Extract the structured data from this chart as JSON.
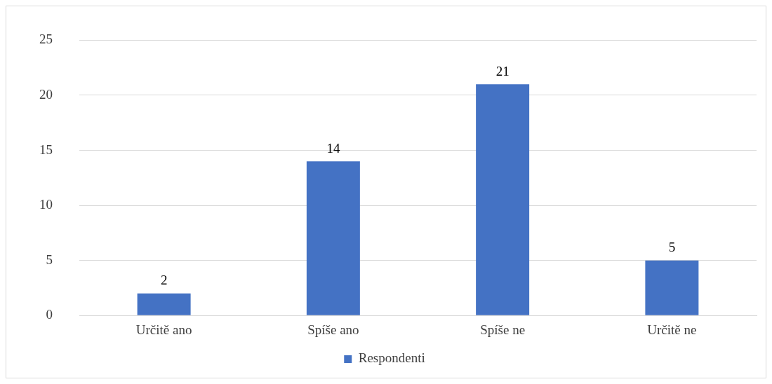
{
  "chart_data": {
    "type": "bar",
    "categories": [
      "Určitě ano",
      "Spíše ano",
      "Spíše ne",
      "Určitě ne"
    ],
    "series": [
      {
        "name": "Respondenti",
        "color": "#4472c4",
        "values": [
          2,
          14,
          21,
          5
        ]
      }
    ],
    "ylim": [
      0,
      25
    ],
    "yticks": [
      0,
      5,
      10,
      15,
      20,
      25
    ],
    "grid": "y",
    "legend": "bottom",
    "data_labels": true
  }
}
